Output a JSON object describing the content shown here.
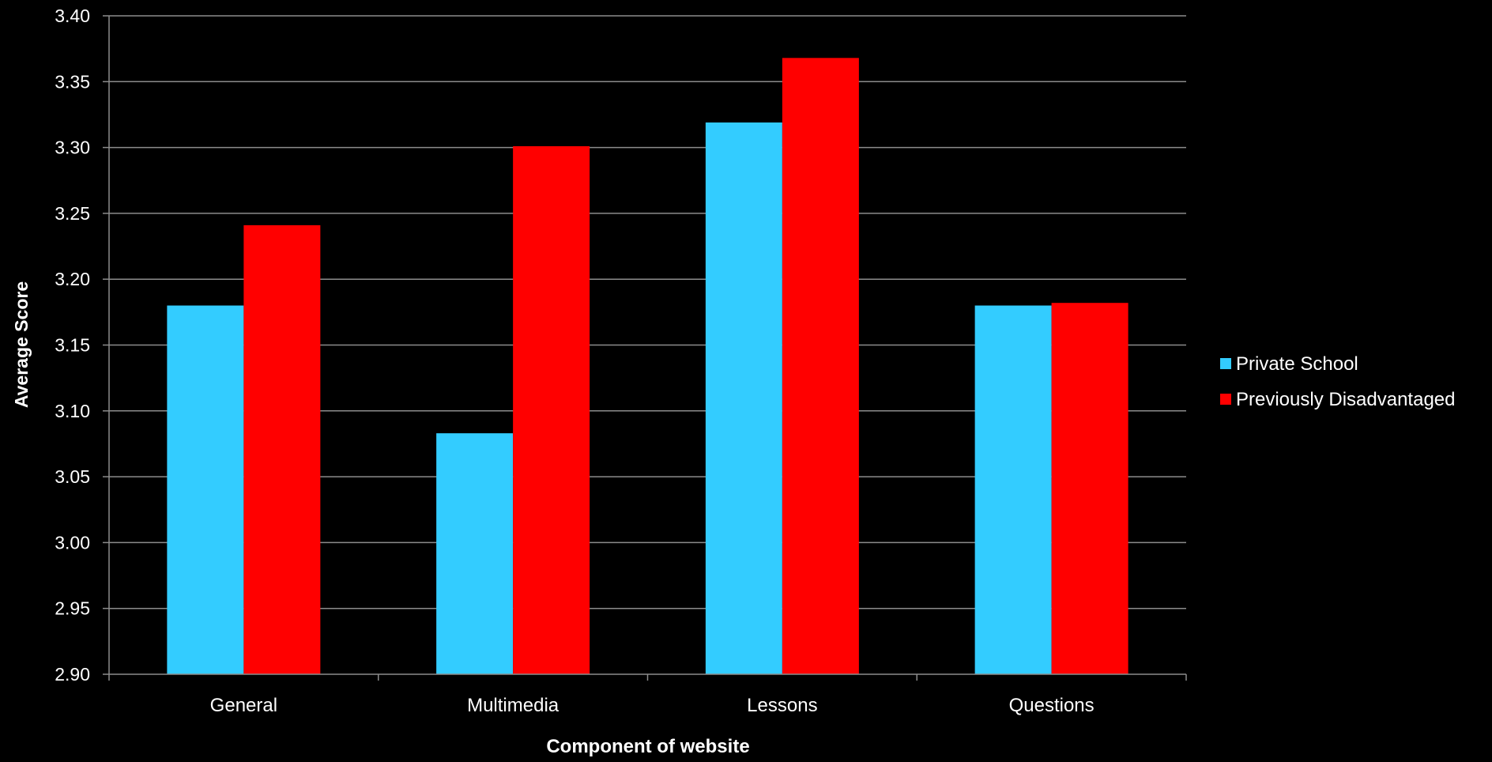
{
  "chart_data": {
    "type": "bar",
    "title": "",
    "xlabel": "Component of website",
    "ylabel": "Average Score",
    "categories": [
      "General",
      "Multimedia",
      "Lessons",
      "Questions"
    ],
    "series": [
      {
        "name": "Private School",
        "color": "#33CCFF",
        "values": [
          3.18,
          3.083,
          3.319,
          3.18
        ]
      },
      {
        "name": "Previously Disadvantaged",
        "color": "#FF0000",
        "values": [
          3.241,
          3.301,
          3.368,
          3.182
        ]
      }
    ],
    "ylim": [
      2.9,
      3.4
    ],
    "ytick_step": 0.05,
    "yticks": [
      "2.90",
      "2.95",
      "3.00",
      "3.05",
      "3.10",
      "3.15",
      "3.20",
      "3.25",
      "3.30",
      "3.35",
      "3.40"
    ],
    "grid": true,
    "legend_position": "right",
    "background": "#000000",
    "text_color": "#FFFFFF",
    "grid_color": "#8C8C8C"
  }
}
